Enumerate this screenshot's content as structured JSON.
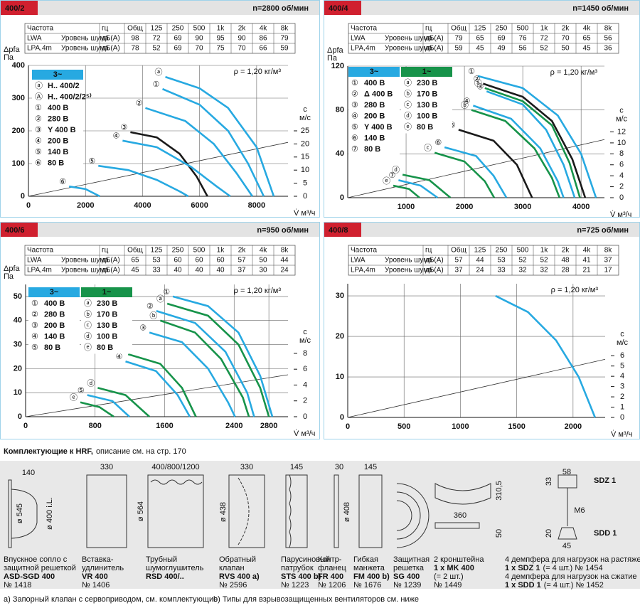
{
  "chart_data": [
    {
      "type": "line",
      "title": "400/2",
      "subtitle": "n=2800 об/мин",
      "noise_table": {
        "header": [
          "Частота",
          "гц",
          "Общ",
          "125",
          "250",
          "500",
          "1k",
          "2k",
          "4k",
          "8k"
        ],
        "rows": [
          [
            "LWA",
            "Уровень шума",
            "дБ(A)",
            98,
            72,
            69,
            90,
            95,
            90,
            86,
            79
          ],
          [
            "LPA,4m",
            "Уровень шума",
            "дБ(A)",
            78,
            52,
            69,
            70,
            75,
            70,
            66,
            59
          ]
        ]
      },
      "y_label": "Δpfa",
      "y_unit": "Па",
      "x_label": "V̇ м³/ч",
      "y2_label": "с",
      "y2_unit": "м/с",
      "density": "ρ = 1,20 кг/м³",
      "xlim": [
        0,
        9100
      ],
      "xticks": [
        0,
        2000,
        4000,
        6000,
        8000
      ],
      "ylim": [
        0,
        400
      ],
      "yticks": [
        0,
        100,
        200,
        300,
        400
      ],
      "y2lim": [
        0,
        50
      ],
      "y2ticks": [
        0,
        5,
        10,
        15,
        20,
        25
      ],
      "reference_line": {
        "x": [
          0,
          9100
        ],
        "values": [
          0,
          20.6
        ],
        "axis": "y2",
        "color": "#333333"
      },
      "legend_groups": [
        {
          "title": "3~",
          "color": "#27a9e1"
        }
      ],
      "legend_note": {
        "marker": "Ⓐ",
        "name": "H.. 400/2/2⁵⁾",
        "color": "#27a9e1"
      },
      "series": [
        {
          "marker": "ⓐ",
          "name": "H.. 400/2",
          "group": 0,
          "color": "#27a9e1",
          "x": [
            4800,
            6000,
            7000,
            8000,
            8600
          ],
          "values": [
            365,
            330,
            270,
            150,
            0
          ]
        },
        {
          "marker": "①",
          "name": "400 В",
          "group": 0,
          "color": "#27a9e1",
          "x": [
            4700,
            6000,
            7000,
            7700,
            8250
          ],
          "values": [
            328,
            280,
            200,
            100,
            0
          ]
        },
        {
          "marker": "②",
          "name": "280 В",
          "group": 0,
          "color": "#27a9e1",
          "x": [
            4100,
            5500,
            6500,
            7300,
            7850
          ],
          "values": [
            270,
            230,
            160,
            70,
            0
          ]
        },
        {
          "marker": "③",
          "name": "Y 400 В",
          "group": 0,
          "color": "#1a1a1a",
          "x": [
            3575,
            4500,
            5300,
            5900,
            6275
          ],
          "values": [
            196,
            180,
            130,
            60,
            0
          ]
        },
        {
          "marker": "④",
          "name": "200 В",
          "group": 0,
          "color": "#27a9e1",
          "x": [
            3300,
            4500,
            5700,
            6600,
            7075
          ],
          "values": [
            170,
            150,
            90,
            30,
            0
          ]
        },
        {
          "marker": "⑤",
          "name": "140 В",
          "group": 0,
          "color": "#27a9e1",
          "x": [
            2450,
            3500,
            4500,
            5300,
            5600
          ],
          "values": [
            93,
            80,
            50,
            15,
            0
          ]
        },
        {
          "marker": "⑥",
          "name": "80 В",
          "group": 0,
          "color": "#27a9e1",
          "x": [
            1425,
            2000,
            2500
          ],
          "values": [
            30,
            22,
            0
          ]
        }
      ]
    },
    {
      "type": "line",
      "title": "400/4",
      "subtitle": "n=1450 об/мин",
      "noise_table": {
        "header": [
          "Частота",
          "гц",
          "Общ",
          "125",
          "250",
          "500",
          "1k",
          "2k",
          "4k",
          "8k"
        ],
        "rows": [
          [
            "LWA",
            "Уровень шума",
            "дБ(A)",
            79,
            65,
            69,
            76,
            72,
            70,
            65,
            56
          ],
          [
            "LPA,4m",
            "Уровень шума",
            "дБ(A)",
            59,
            45,
            49,
            56,
            52,
            50,
            45,
            36
          ]
        ]
      },
      "y_label": "Δpfa",
      "y_unit": "Па",
      "x_label": "V̇ м³/ч",
      "y2_label": "с",
      "y2_unit": "м/с",
      "density": "ρ = 1,20 кг/м³",
      "xlim": [
        0,
        4400
      ],
      "xticks": [
        1000,
        2000,
        3000,
        4000
      ],
      "ylim": [
        0,
        120
      ],
      "yticks": [
        0,
        40,
        80,
        120
      ],
      "y2lim": [
        0,
        24
      ],
      "y2ticks": [
        0,
        2,
        4,
        6,
        8,
        10,
        12
      ],
      "reference_line": {
        "x": [
          0,
          4400
        ],
        "values": [
          0,
          10.6
        ],
        "axis": "y2",
        "color": "#333333"
      },
      "legend_groups": [
        {
          "title": "3~",
          "color": "#27a9e1"
        },
        {
          "title": "1~",
          "color": "#17934a"
        }
      ],
      "series": [
        {
          "marker": "①",
          "name": "400 В",
          "group": 0,
          "color": "#27a9e1",
          "x": [
            2230,
            3000,
            3600,
            4000,
            4255
          ],
          "values": [
            111,
            100,
            75,
            40,
            0
          ]
        },
        {
          "marker": "②",
          "name": "Δ 400 В",
          "group": 0,
          "color": "#1a1a1a",
          "x": [
            2320,
            3000,
            3500,
            3850,
            4070
          ],
          "values": [
            104,
            92,
            70,
            35,
            0
          ]
        },
        {
          "marker": "③",
          "name": "280 В",
          "group": 0,
          "color": "#27a9e1",
          "x": [
            2380,
            3000,
            3400,
            3700,
            3890
          ],
          "values": [
            97,
            85,
            62,
            30,
            0
          ]
        },
        {
          "marker": "④",
          "name": "200 В",
          "group": 0,
          "color": "#27a9e1",
          "x": [
            2150,
            2800,
            3300,
            3600,
            3700
          ],
          "values": [
            84,
            72,
            45,
            15,
            0
          ]
        },
        {
          "marker": "⑤",
          "name": "Y 400 В",
          "group": 0,
          "color": "#1a1a1a",
          "x": [
            1900,
            2500,
            2900,
            3160
          ],
          "values": [
            62,
            52,
            30,
            0
          ]
        },
        {
          "marker": "⑥",
          "name": "140 В",
          "group": 0,
          "color": "#27a9e1",
          "x": [
            1660,
            2200,
            2500,
            2720
          ],
          "values": [
            46,
            38,
            20,
            0
          ]
        },
        {
          "marker": "⑦",
          "name": "80 В",
          "group": 0,
          "color": "#27a9e1",
          "x": [
            870,
            1250,
            1540
          ],
          "values": [
            16,
            11,
            0
          ]
        },
        {
          "marker": "ⓐ",
          "name": "230 В",
          "group": 1,
          "color": "#17934a",
          "x": [
            2350,
            3000,
            3500,
            3800,
            3980
          ],
          "values": [
            100,
            88,
            66,
            32,
            0
          ]
        },
        {
          "marker": "ⓑ",
          "name": "170 В",
          "group": 1,
          "color": "#17934a",
          "x": [
            2120,
            2700,
            3200,
            3500,
            3630
          ],
          "values": [
            80,
            70,
            45,
            18,
            0
          ]
        },
        {
          "marker": "ⓒ",
          "name": "130 В",
          "group": 1,
          "color": "#17934a",
          "x": [
            1490,
            2000,
            2350,
            2510
          ],
          "values": [
            41,
            33,
            15,
            0
          ]
        },
        {
          "marker": "ⓓ",
          "name": "100 В",
          "group": 1,
          "color": "#17934a",
          "x": [
            940,
            1400,
            1760
          ],
          "values": [
            21,
            16,
            0
          ]
        },
        {
          "marker": "ⓔ",
          "name": "80 В",
          "group": 1,
          "color": "#17934a",
          "x": [
            780,
            1050,
            1230
          ],
          "values": [
            11,
            8,
            0
          ]
        }
      ]
    },
    {
      "type": "line",
      "title": "400/6",
      "subtitle": "n=950 об/мин",
      "noise_table": {
        "header": [
          "Частота",
          "гц",
          "Общ",
          "125",
          "250",
          "500",
          "1k",
          "2k",
          "4k",
          "8k"
        ],
        "rows": [
          [
            "LWA",
            "Уровень шума",
            "дБ(A)",
            65,
            53,
            60,
            60,
            60,
            57,
            50,
            44
          ],
          [
            "LPA,4m",
            "Уровень шума",
            "дБ(A)",
            45,
            33,
            40,
            40,
            40,
            37,
            30,
            24
          ]
        ]
      },
      "y_label": "Δpfa",
      "y_unit": "Па",
      "x_label": "V̇ м³/ч",
      "y2_label": "с",
      "y2_unit": "м/с",
      "density": "ρ = 1,20 кг/м³",
      "xlim": [
        0,
        3020
      ],
      "xticks": [
        0,
        800,
        1600,
        2400,
        2800
      ],
      "ylim": [
        0,
        55
      ],
      "yticks": [
        0,
        10,
        20,
        30,
        40,
        50
      ],
      "y2lim": [
        0,
        16.7
      ],
      "y2ticks": [
        0,
        2,
        4,
        6,
        8
      ],
      "reference_line": {
        "x": [
          0,
          3020
        ],
        "values": [
          0,
          5.3
        ],
        "axis": "y2",
        "color": "#333333"
      },
      "legend_groups": [
        {
          "title": "3~",
          "color": "#27a9e1"
        },
        {
          "title": "1~",
          "color": "#17934a"
        }
      ],
      "series": [
        {
          "marker": "①",
          "name": "400 В",
          "group": 0,
          "color": "#27a9e1",
          "x": [
            1695,
            2100,
            2450,
            2700,
            2840
          ],
          "values": [
            50,
            46,
            35,
            17,
            0
          ]
        },
        {
          "marker": "②",
          "name": "280 В",
          "group": 0,
          "color": "#27a9e1",
          "x": [
            1505,
            1950,
            2300,
            2550,
            2630
          ],
          "values": [
            44,
            39,
            27,
            10,
            0
          ]
        },
        {
          "marker": "③",
          "name": "200 В",
          "group": 0,
          "color": "#27a9e1",
          "x": [
            1425,
            1800,
            2100,
            2330,
            2410
          ],
          "values": [
            35,
            31,
            20,
            6,
            0
          ]
        },
        {
          "marker": "④",
          "name": "140 В",
          "group": 0,
          "color": "#27a9e1",
          "x": [
            1150,
            1500,
            1750,
            1890
          ],
          "values": [
            23,
            19,
            9,
            0
          ]
        },
        {
          "marker": "⑤",
          "name": "80 В",
          "group": 0,
          "color": "#27a9e1",
          "x": [
            710,
            1000,
            1195
          ],
          "values": [
            9,
            6.5,
            0
          ]
        },
        {
          "marker": "ⓐ",
          "name": "230 В",
          "group": 1,
          "color": "#17934a",
          "x": [
            1630,
            2100,
            2450,
            2700,
            2800
          ],
          "values": [
            47,
            42,
            30,
            12,
            0
          ]
        },
        {
          "marker": "ⓑ",
          "name": "170 В",
          "group": 1,
          "color": "#17934a",
          "x": [
            1550,
            1950,
            2250,
            2500,
            2570
          ],
          "values": [
            40,
            35,
            24,
            8,
            0
          ]
        },
        {
          "marker": "ⓒ",
          "name": "130 В",
          "group": 1,
          "color": "#17934a",
          "x": [
            1180,
            1550,
            1800,
            1960
          ],
          "values": [
            26,
            22,
            12,
            0
          ]
        },
        {
          "marker": "ⓓ",
          "name": "100 В",
          "group": 1,
          "color": "#17934a",
          "x": [
            830,
            1150,
            1425
          ],
          "values": [
            12,
            9,
            0
          ]
        },
        {
          "marker": "ⓔ",
          "name": "80 В",
          "group": 1,
          "color": "#17934a",
          "x": [
            630,
            850,
            1015
          ],
          "values": [
            6,
            4,
            0
          ]
        }
      ]
    },
    {
      "type": "line",
      "title": "400/8",
      "subtitle": "n=725 об/мин",
      "noise_table": {
        "header": [
          "Частота",
          "гц",
          "Общ",
          "125",
          "250",
          "500",
          "1k",
          "2k",
          "4k",
          "8k"
        ],
        "rows": [
          [
            "LWA",
            "Уровень шума",
            "дБ(A)",
            57,
            44,
            53,
            52,
            52,
            48,
            41,
            37
          ],
          [
            "LPA,4m",
            "Уровень шума",
            "дБ(A)",
            37,
            24,
            33,
            32,
            32,
            28,
            21,
            17
          ]
        ]
      },
      "x_label": "V̇ м³/ч",
      "y2_label": "с",
      "y2_unit": "м/с",
      "density": "ρ = 1,20 кг/м³",
      "xlim": [
        0,
        2285
      ],
      "xticks": [
        0,
        500,
        1000,
        1500,
        2000
      ],
      "ylim": [
        0,
        33
      ],
      "yticks": [
        0,
        10,
        20,
        30
      ],
      "y2lim": [
        0,
        13
      ],
      "y2ticks": [
        0,
        1,
        2,
        3,
        4,
        5,
        6
      ],
      "reference_line": {
        "x": [
          0,
          2285
        ],
        "values": [
          0,
          5.65
        ],
        "axis": "y2",
        "color": "#333333"
      },
      "series": [
        {
          "color": "#27a9e1",
          "x": [
            1312,
            1600,
            1850,
            2050,
            2195
          ],
          "values": [
            30,
            26,
            19,
            10,
            0
          ]
        }
      ]
    }
  ],
  "accessories": {
    "title": "Комплектующие к HRF,",
    "subtitle": "описание см. на стр. 170",
    "items": [
      {
        "description": [
          "Впускное сопло с",
          "защитной решеткой"
        ],
        "model": "ASD-SGD 400",
        "number": "№ 1418",
        "dims": [
          "140",
          "ø 545",
          "ø 400 i.L."
        ]
      },
      {
        "description": [
          "Вставка-",
          "удлинитель"
        ],
        "model": "VR 400",
        "number": "№ 1406",
        "dims": [
          "330"
        ]
      },
      {
        "description": [
          "Трубный",
          "шумоглушитель"
        ],
        "model": "RSD 400/..",
        "dims": [
          "400/800/1200",
          "ø 564"
        ]
      },
      {
        "description": [
          "Обратный",
          "клапан"
        ],
        "model": "RVS 400 a)",
        "number": "№ 2596",
        "dims": [
          "330",
          "ø 438"
        ]
      },
      {
        "description": [
          "Парусиновый",
          "патрубок"
        ],
        "model": "STS 400 b)",
        "number": "№ 1223",
        "dims": [
          "145"
        ]
      },
      {
        "description": [
          "Контр-",
          "фланец"
        ],
        "model": "FR 400",
        "number": "№ 1206",
        "dims": [
          "30",
          "ø 408"
        ]
      },
      {
        "description": [
          "Гибкая",
          "манжета"
        ],
        "model": "FM 400 b)",
        "number": "№ 1676",
        "dims": [
          "145"
        ]
      },
      {
        "description": [
          "Защитная",
          "решетка"
        ],
        "model": "SG 400",
        "number": "№ 1239"
      },
      {
        "description": [
          "2 кронштейна"
        ],
        "model": "1 x MK 400",
        "note": "(= 2 шт.)",
        "number": "№ 1449",
        "dims": [
          "310,5",
          "360",
          "50"
        ]
      }
    ],
    "dampers": [
      {
        "label": "SDZ 1",
        "description": "4 демпфера для нагрузок на растяжение",
        "model": "1 x SDZ 1",
        "note": "(= 4 шт.) № 1454",
        "dims": [
          "58",
          "33",
          "M6"
        ]
      },
      {
        "label": "SDD 1",
        "description": "4 демпфера для нагрузок на сжатие",
        "model": "1 x SDD 1",
        "note": "(= 4 шт.) № 1452",
        "dims": [
          "20",
          "45"
        ]
      }
    ],
    "footnotes": [
      "a) Запорный клапан с сервоприводом, см. комплектующие",
      "b) Типы для взрывозащищенных вентиляторов см. ниже"
    ]
  }
}
